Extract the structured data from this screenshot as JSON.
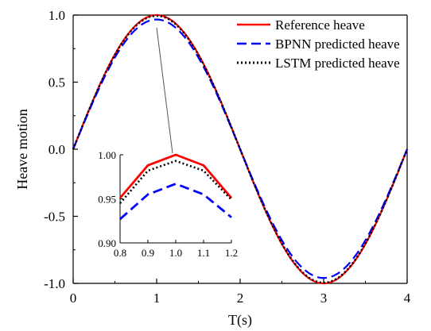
{
  "chart_data": {
    "type": "line",
    "xlabel": "T(s)",
    "ylabel": "Heave motion",
    "xlim": [
      0,
      4
    ],
    "ylim": [
      -1.0,
      1.0
    ],
    "x_ticks": [
      "0",
      "1",
      "2",
      "3",
      "4"
    ],
    "y_ticks": [
      "-1.0",
      "-0.5",
      "0.0",
      "0.5",
      "1.0"
    ],
    "grid": false,
    "legend_position": "top-right",
    "series": [
      {
        "name": "Reference heave",
        "color": "#ff0000",
        "style": "solid",
        "x": [
          0,
          0.25,
          0.5,
          0.75,
          1.0,
          1.25,
          1.5,
          1.75,
          2.0,
          2.25,
          2.5,
          2.75,
          3.0,
          3.25,
          3.5,
          3.75,
          4.0
        ],
        "y": [
          0,
          0.383,
          0.707,
          0.924,
          1.0,
          0.924,
          0.707,
          0.383,
          0,
          -0.383,
          -0.707,
          -0.924,
          -1.0,
          -0.924,
          -0.707,
          -0.383,
          0
        ]
      },
      {
        "name": "BPNN predicted heave",
        "color": "#0000ff",
        "style": "dashed",
        "x": [
          0,
          0.25,
          0.5,
          0.75,
          1.0,
          1.25,
          1.5,
          1.75,
          2.0,
          2.25,
          2.5,
          2.75,
          3.0,
          3.25,
          3.5,
          3.75,
          4.0
        ],
        "y": [
          0,
          0.38,
          0.7,
          0.91,
          0.967,
          0.9,
          0.7,
          0.38,
          0,
          -0.38,
          -0.7,
          -0.91,
          -0.96,
          -0.91,
          -0.7,
          -0.38,
          0
        ]
      },
      {
        "name": "LSTM predicted heave",
        "color": "#000000",
        "style": "dotted",
        "x": [
          0,
          0.25,
          0.5,
          0.75,
          1.0,
          1.25,
          1.5,
          1.75,
          2.0,
          2.25,
          2.5,
          2.75,
          3.0,
          3.25,
          3.5,
          3.75,
          4.0
        ],
        "y": [
          0,
          0.382,
          0.705,
          0.921,
          0.993,
          0.92,
          0.705,
          0.382,
          0,
          -0.382,
          -0.705,
          -0.921,
          -0.995,
          -0.921,
          -0.705,
          -0.382,
          0
        ]
      }
    ],
    "inset": {
      "xlim": [
        0.8,
        1.2
      ],
      "ylim": [
        0.9,
        1.0
      ],
      "x_ticks": [
        "0.8",
        "0.9",
        "1.0",
        "1.1",
        "1.2"
      ],
      "y_ticks": [
        "0.90",
        "0.95",
        "1.00"
      ],
      "x": [
        0.8,
        0.9,
        1.0,
        1.1,
        1.2
      ],
      "series": [
        {
          "name": "Reference heave",
          "color": "#ff0000",
          "style": "solid",
          "y": [
            0.951,
            0.988,
            1.0,
            0.988,
            0.951
          ]
        },
        {
          "name": "BPNN predicted heave",
          "color": "#0000ff",
          "style": "dashed",
          "y": [
            0.927,
            0.955,
            0.967,
            0.955,
            0.929
          ]
        },
        {
          "name": "LSTM predicted heave",
          "color": "#000000",
          "style": "dotted",
          "y": [
            0.945,
            0.982,
            0.993,
            0.982,
            0.949
          ]
        }
      ]
    }
  }
}
